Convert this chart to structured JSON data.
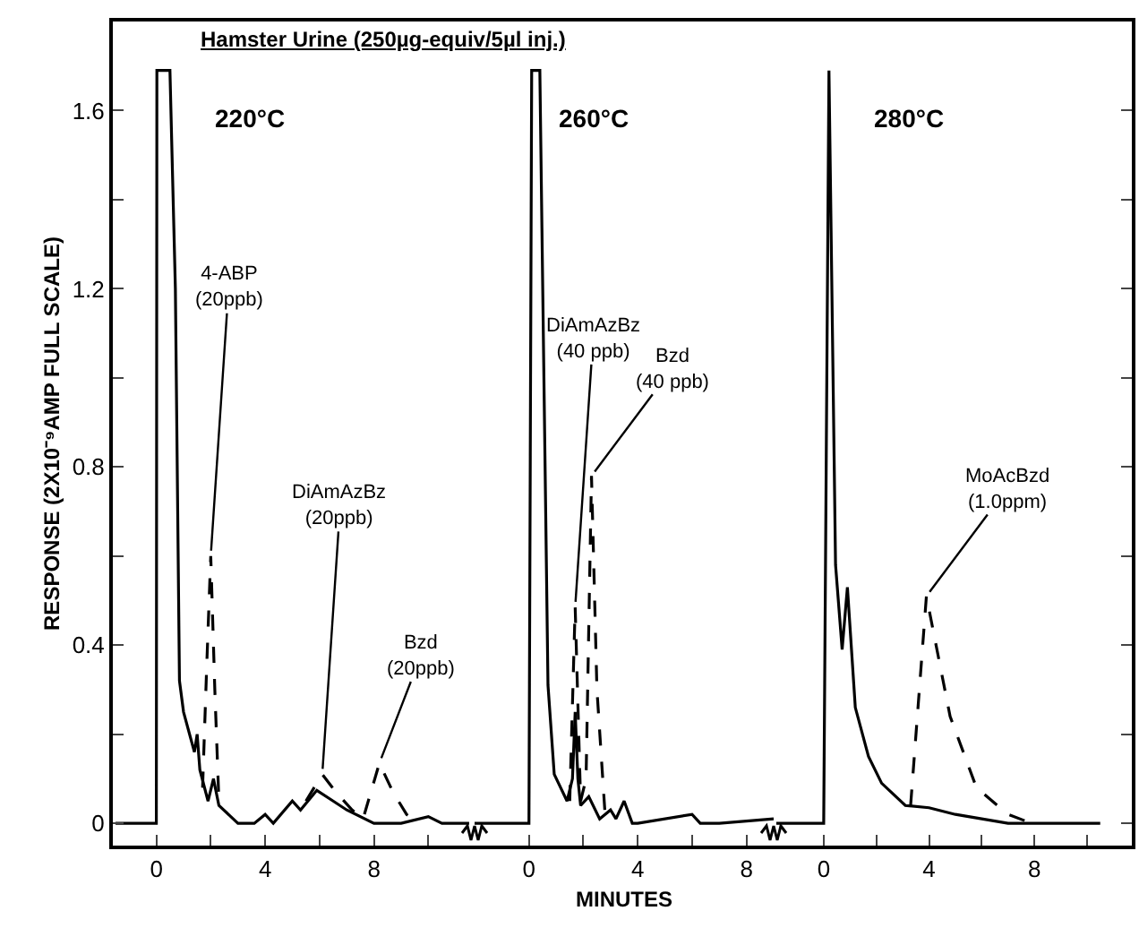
{
  "chart_data": [
    {
      "type": "line",
      "title": "Hamster Urine (250µg-equiv/5µl inj.)",
      "ylabel": "RESPONSE (2X10⁻⁹AMP FULL SCALE)",
      "annotations": [
        "220°C",
        {
          "text": "4-ABP\n(20ppb)",
          "x": 2.0,
          "y": 0.6
        },
        {
          "text": "DiAmAzBz\n(20ppb)",
          "x": 6.1,
          "y": 0.11
        },
        {
          "text": "Bzd\n(20ppb)",
          "x": 8.2,
          "y": 0.135
        }
      ],
      "series": [
        {
          "color": "#000000",
          "line_style": "solid",
          "x": [
            -1.5,
            0,
            0.02,
            0.5,
            0.7,
            0.85,
            1.0,
            1.4,
            1.5,
            1.6,
            1.9,
            2.1,
            2.3,
            3.0,
            3.6,
            4.0,
            4.3,
            5.0,
            5.3,
            5.9,
            6.5,
            7.0,
            8.0,
            9.0,
            10.0,
            10.5,
            11.0,
            11.5
          ],
          "values": [
            0,
            0,
            1.69,
            1.69,
            1.2,
            0.32,
            0.25,
            0.16,
            0.2,
            0.12,
            0.05,
            0.1,
            0.04,
            0,
            0,
            0.02,
            0,
            0.05,
            0.03,
            0.074,
            0.05,
            0.03,
            0,
            0,
            0.015,
            0,
            0,
            0
          ]
        },
        {
          "color": "#000000",
          "line_style": "dashed",
          "x": [
            1.7,
            1.85,
            2.0,
            2.15,
            2.3,
            4.0,
            5.5,
            6.1,
            6.6,
            7.2,
            7.6,
            8.2,
            8.7,
            9.2,
            9.6
          ],
          "values": [
            0.08,
            0.35,
            0.6,
            0.3,
            0.05,
            null,
            0.05,
            0.11,
            0.07,
            0.03,
            0.01,
            0.135,
            0.07,
            0.02,
            0
          ]
        }
      ],
      "xlim": [
        -1.6,
        11.7
      ],
      "ylim": [
        -0.05,
        1.8
      ],
      "xticks": [
        0,
        {
          "value": 2,
          "label": null
        },
        4,
        {
          "value": 6,
          "label": null
        },
        8,
        {
          "value": 10,
          "label": null
        }
      ],
      "yticks": [
        0,
        {
          "value": 0.2,
          "label": null
        },
        0.4,
        {
          "value": 0.6,
          "label": null
        },
        0.8,
        {
          "value": 1.0,
          "label": null
        },
        1.2,
        {
          "value": 1.4,
          "label": null
        },
        1.6
      ]
    },
    {
      "type": "line",
      "xlabel": "MINUTES",
      "annotations": [
        "260°C",
        {
          "text": "DiAmAzBz\n(40 ppb)",
          "x": 1.7,
          "y": 0.485
        },
        {
          "text": "Bzd\n(40 ppb)",
          "x": 2.3,
          "y": 0.78
        }
      ],
      "series": [
        {
          "color": "#000000",
          "line_style": "solid",
          "x": [
            -2.0,
            0,
            0.1,
            0.4,
            0.7,
            0.93,
            1.4,
            1.6,
            1.7,
            1.8,
            1.9,
            2.2,
            2.6,
            3.0,
            3.2,
            3.5,
            3.8,
            4.0,
            6.0,
            6.3,
            7.0,
            9.0
          ],
          "values": [
            0,
            0,
            1.69,
            1.69,
            0.31,
            0.11,
            0.05,
            0.1,
            0.25,
            0.1,
            0.04,
            0.06,
            0.01,
            0.03,
            0.01,
            0.05,
            0,
            0,
            0.02,
            0,
            0,
            0.01
          ]
        },
        {
          "color": "#000000",
          "line_style": "dashed",
          "x": [
            1.5,
            1.7,
            1.9,
            2.1,
            2.3,
            2.5,
            2.8
          ],
          "values": [
            0.05,
            0.485,
            0.05,
            0.1,
            0.78,
            0.3,
            0.02
          ]
        }
      ],
      "xlim": [
        -2.0,
        9.0
      ],
      "ylim": [
        -0.05,
        1.8
      ],
      "tick_labels": "x",
      "xticks": [
        0,
        {
          "value": 2,
          "label": null
        },
        4,
        {
          "value": 6,
          "label": null
        },
        8
      ]
    },
    {
      "type": "line",
      "annotations": [
        "280°C",
        {
          "text": "MoAcBzd\n(1.0ppm)",
          "x": 3.9,
          "y": 0.51
        }
      ],
      "series": [
        {
          "color": "#000000",
          "line_style": "solid",
          "x": [
            -1.8,
            0,
            0.2,
            0.45,
            0.7,
            0.9,
            1.2,
            1.7,
            2.2,
            3.1,
            4.0,
            5.0,
            6.0,
            7.0,
            8.0,
            10.5
          ],
          "values": [
            0,
            0,
            1.69,
            0.58,
            0.39,
            0.53,
            0.26,
            0.15,
            0.09,
            0.04,
            0.035,
            0.02,
            0.01,
            0,
            0,
            0
          ]
        },
        {
          "color": "#000000",
          "line_style": "dashed",
          "x": [
            3.3,
            3.9,
            4.8,
            5.8,
            7.0,
            7.9
          ],
          "values": [
            0.04,
            0.51,
            0.24,
            0.08,
            0.02,
            0
          ]
        }
      ],
      "xlim": [
        -1.9,
        11.7
      ],
      "ylim": [
        -0.05,
        1.8
      ],
      "tick_labels": "x",
      "xticks": [
        0,
        {
          "value": 2,
          "label": null
        },
        4,
        {
          "value": 6,
          "label": null
        },
        8,
        {
          "value": 10,
          "label": null
        }
      ],
      "yticks": [
        0,
        {
          "value": 0.2,
          "label": null
        },
        0.4,
        {
          "value": 0.6,
          "label": null
        },
        0.8,
        {
          "value": 1.0,
          "label": null
        },
        1.2,
        {
          "value": 1.4,
          "label": null
        },
        1.6
      ]
    }
  ]
}
